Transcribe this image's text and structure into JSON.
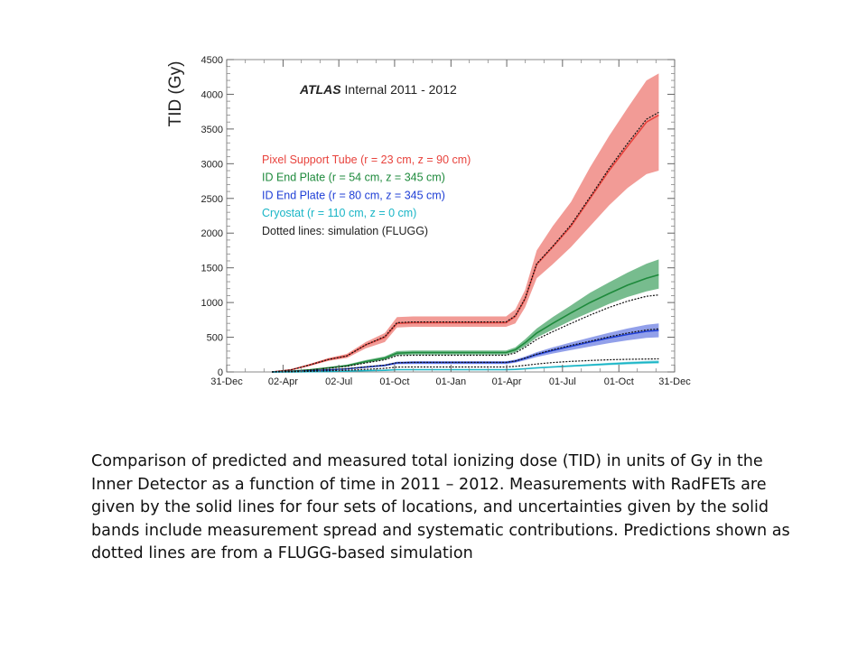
{
  "chart_data": {
    "type": "line",
    "title": "ATLAS Internal 2011 - 2012",
    "title_italic_part": "ATLAS",
    "title_rest": " Internal 2011 - 2012",
    "ylabel": "TID (Gy)",
    "xlabel": "",
    "ylim": [
      0,
      4500
    ],
    "xlim": [
      "2010-12-31",
      "2012-12-31"
    ],
    "y_ticks": [
      0,
      500,
      1000,
      1500,
      2000,
      2500,
      3000,
      3500,
      4000,
      4500
    ],
    "x_ticks": [
      {
        "date": "2010-12-31",
        "label": "31-Dec"
      },
      {
        "date": "2011-04-02",
        "label": "02-Apr"
      },
      {
        "date": "2011-07-02",
        "label": "02-Jul"
      },
      {
        "date": "2011-10-01",
        "label": "01-Oct"
      },
      {
        "date": "2012-01-01",
        "label": "01-Jan"
      },
      {
        "date": "2012-04-01",
        "label": "01-Apr"
      },
      {
        "date": "2012-07-01",
        "label": "01-Jul"
      },
      {
        "date": "2012-10-01",
        "label": "01-Oct"
      },
      {
        "date": "2012-12-31",
        "label": "31-Dec"
      }
    ],
    "legend_position": "upper-left",
    "series": [
      {
        "name": "Pixel Support Tube (r = 23 cm, z = 90 cm)",
        "color": "#e8433d",
        "band_color": "#f08a84",
        "x": [
          "2011-03-15",
          "2011-04-15",
          "2011-05-15",
          "2011-06-15",
          "2011-07-15",
          "2011-08-15",
          "2011-09-15",
          "2011-10-05",
          "2011-10-31",
          "2011-12-15",
          "2012-03-31",
          "2012-04-15",
          "2012-05-01",
          "2012-05-20",
          "2012-06-15",
          "2012-07-15",
          "2012-08-15",
          "2012-09-15",
          "2012-10-15",
          "2012-11-15",
          "2012-12-05"
        ],
        "values": [
          0,
          30,
          100,
          180,
          230,
          390,
          500,
          700,
          710,
          710,
          710,
          800,
          1050,
          1550,
          1800,
          2100,
          2500,
          2900,
          3250,
          3600,
          3700
        ],
        "band_low": [
          0,
          25,
          85,
          160,
          200,
          340,
          430,
          640,
          650,
          650,
          650,
          700,
          930,
          1350,
          1550,
          1800,
          2100,
          2400,
          2650,
          2850,
          2900
        ],
        "band_high": [
          0,
          35,
          115,
          200,
          260,
          430,
          560,
          790,
          800,
          800,
          800,
          900,
          1180,
          1750,
          2100,
          2450,
          2950,
          3400,
          3800,
          4200,
          4300
        ],
        "sim": [
          0,
          30,
          100,
          180,
          230,
          390,
          510,
          710,
          720,
          720,
          720,
          810,
          1060,
          1560,
          1810,
          2120,
          2520,
          2930,
          3290,
          3640,
          3740
        ]
      },
      {
        "name": "ID End Plate (r = 54 cm, z = 345 cm)",
        "color": "#1e8a3c",
        "band_color": "#5fb07a",
        "x": [
          "2011-03-15",
          "2011-04-15",
          "2011-05-15",
          "2011-06-15",
          "2011-07-15",
          "2011-08-15",
          "2011-09-15",
          "2011-10-05",
          "2011-10-31",
          "2011-12-15",
          "2012-03-31",
          "2012-04-15",
          "2012-05-01",
          "2012-05-20",
          "2012-06-15",
          "2012-07-15",
          "2012-08-15",
          "2012-09-15",
          "2012-10-15",
          "2012-11-15",
          "2012-12-05"
        ],
        "values": [
          0,
          10,
          30,
          60,
          90,
          150,
          200,
          270,
          280,
          280,
          280,
          320,
          420,
          560,
          700,
          850,
          1000,
          1130,
          1250,
          1350,
          1400
        ],
        "band_low": [
          0,
          8,
          25,
          50,
          75,
          130,
          175,
          240,
          250,
          250,
          250,
          285,
          370,
          495,
          610,
          740,
          860,
          980,
          1080,
          1160,
          1200
        ],
        "band_high": [
          0,
          12,
          35,
          70,
          105,
          170,
          225,
          300,
          310,
          310,
          310,
          355,
          470,
          625,
          790,
          960,
          1140,
          1290,
          1430,
          1560,
          1620
        ],
        "sim": [
          0,
          9,
          27,
          54,
          80,
          130,
          175,
          235,
          240,
          240,
          240,
          275,
          355,
          470,
          580,
          700,
          820,
          930,
          1020,
          1090,
          1110
        ]
      },
      {
        "name": "ID End Plate (r = 80 cm, z = 345 cm)",
        "color": "#1f3fd6",
        "band_color": "#7f8fe6",
        "x": [
          "2011-03-15",
          "2011-04-15",
          "2011-05-15",
          "2011-06-15",
          "2011-07-15",
          "2011-08-15",
          "2011-09-15",
          "2011-10-05",
          "2011-10-31",
          "2011-12-15",
          "2012-03-31",
          "2012-04-15",
          "2012-05-01",
          "2012-05-20",
          "2012-06-15",
          "2012-07-15",
          "2012-08-15",
          "2012-09-15",
          "2012-10-15",
          "2012-11-15",
          "2012-12-05"
        ],
        "values": [
          0,
          5,
          15,
          30,
          45,
          70,
          95,
          130,
          135,
          135,
          135,
          155,
          195,
          250,
          310,
          370,
          430,
          490,
          540,
          585,
          600
        ],
        "band_low": [
          0,
          4,
          12,
          25,
          38,
          60,
          82,
          112,
          115,
          115,
          115,
          133,
          168,
          215,
          265,
          315,
          365,
          415,
          455,
          490,
          500
        ],
        "band_high": [
          0,
          6,
          18,
          35,
          52,
          80,
          108,
          148,
          155,
          155,
          155,
          177,
          222,
          285,
          355,
          425,
          495,
          565,
          625,
          680,
          700
        ],
        "sim": [
          0,
          5,
          16,
          32,
          47,
          73,
          98,
          134,
          138,
          138,
          138,
          158,
          200,
          258,
          320,
          382,
          444,
          506,
          560,
          605,
          620
        ]
      },
      {
        "name": "Cryostat (r = 110 cm, z = 0 cm)",
        "color": "#19b5c6",
        "band_color": "#7fd6df",
        "x": [
          "2011-03-15",
          "2011-04-15",
          "2011-05-15",
          "2011-06-15",
          "2011-07-15",
          "2011-08-15",
          "2011-09-15",
          "2011-10-05",
          "2011-10-31",
          "2011-12-15",
          "2012-03-31",
          "2012-04-15",
          "2012-05-01",
          "2012-05-20",
          "2012-06-15",
          "2012-07-15",
          "2012-08-15",
          "2012-09-15",
          "2012-10-15",
          "2012-11-15",
          "2012-12-05"
        ],
        "values": [
          0,
          1,
          4,
          8,
          12,
          18,
          24,
          32,
          33,
          33,
          33,
          37,
          46,
          58,
          72,
          86,
          100,
          114,
          127,
          138,
          142
        ],
        "band_low": [
          0,
          1,
          3,
          6,
          10,
          15,
          20,
          27,
          28,
          28,
          28,
          31,
          39,
          49,
          61,
          73,
          85,
          97,
          108,
          117,
          120
        ],
        "band_high": [
          0,
          1,
          5,
          10,
          14,
          21,
          28,
          37,
          38,
          38,
          38,
          43,
          53,
          67,
          83,
          99,
          115,
          131,
          146,
          159,
          165
        ],
        "sim": [
          0,
          2,
          8,
          16,
          24,
          38,
          52,
          70,
          72,
          72,
          72,
          80,
          95,
          115,
          135,
          152,
          165,
          175,
          182,
          186,
          188
        ]
      }
    ],
    "legend_extra": "Dotted lines: simulation (FLUGG)"
  },
  "caption": "Comparison of predicted and measured total ionizing dose (TID) in units of Gy in the Inner Detector as a function of time in 2011 – 2012. Measurements with RadFETs are given by the solid lines for four sets of locations, and uncertainties given by the solid bands include measurement spread and systematic contributions. Predictions shown as dotted lines are from a FLUGG-based simulation"
}
